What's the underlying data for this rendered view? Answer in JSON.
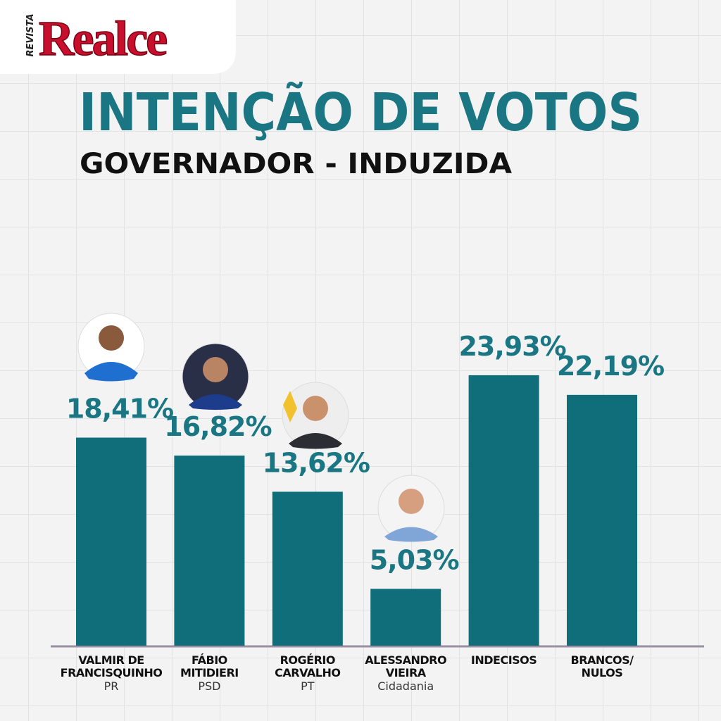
{
  "brand": {
    "kicker": "REVISTA",
    "name": "Realce"
  },
  "chart_data": {
    "type": "bar",
    "title": "INTENÇÃO DE VOTOS",
    "subtitle": "GOVERNADOR - INDUZIDA",
    "categories": [
      "VALMIR DE\nFRANCISQUINHO",
      "FÁBIO\nMITIDIERI",
      "ROGÉRIO\nCARVALHO",
      "ALESSANDRO\nVIEIRA",
      "INDECISOS",
      "BRANCOS/\nNULOS"
    ],
    "parties": [
      "PR",
      "PSD",
      "PT",
      "Cidadania",
      null,
      null
    ],
    "values": [
      18.41,
      16.82,
      13.62,
      5.03,
      23.93,
      22.19
    ],
    "value_labels": [
      "18,41%",
      "16,82%",
      "13,62%",
      "5,03%",
      "23,93%",
      "22,19%"
    ],
    "color": "#0f6e79"
  }
}
